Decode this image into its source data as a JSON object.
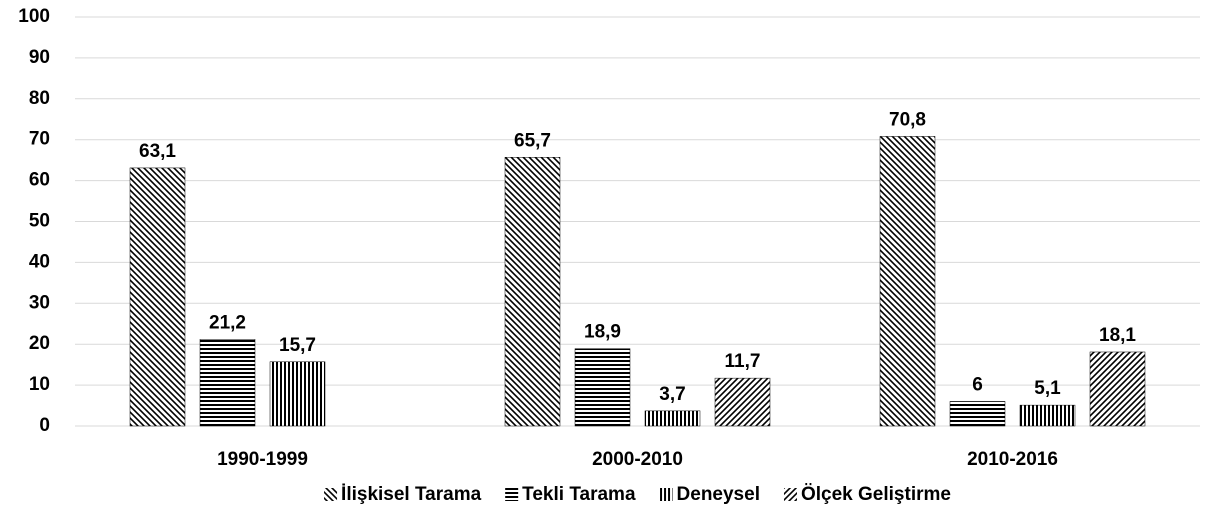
{
  "chart_data": {
    "type": "bar",
    "categories": [
      "1990-1999",
      "2000-2010",
      "2010-2016"
    ],
    "series": [
      {
        "name": "İlişkisel Tarama",
        "color": "#000000",
        "pattern": "backslash",
        "values": [
          63.1,
          65.7,
          70.8
        ],
        "value_labels": [
          "63,1",
          "65,7",
          "70,8"
        ]
      },
      {
        "name": "Tekli Tarama",
        "color": "#000000",
        "pattern": "horizontal",
        "values": [
          21.2,
          18.9,
          6
        ],
        "value_labels": [
          "21,2",
          "18,9",
          "6"
        ]
      },
      {
        "name": "Deneysel",
        "color": "#000000",
        "pattern": "vertical",
        "values": [
          15.7,
          3.7,
          5.1
        ],
        "value_labels": [
          "15,7",
          "3,7",
          "5,1"
        ]
      },
      {
        "name": "Ölçek Geliştirme",
        "color": "#000000",
        "pattern": "slash",
        "values": [
          null,
          11.7,
          18.1
        ],
        "value_labels": [
          null,
          "11,7",
          "18,1"
        ]
      }
    ],
    "ylim": [
      0,
      100
    ],
    "yticks": [
      0,
      10,
      20,
      30,
      40,
      50,
      60,
      70,
      80,
      90,
      100
    ],
    "grid": true,
    "legend": "bottom"
  }
}
